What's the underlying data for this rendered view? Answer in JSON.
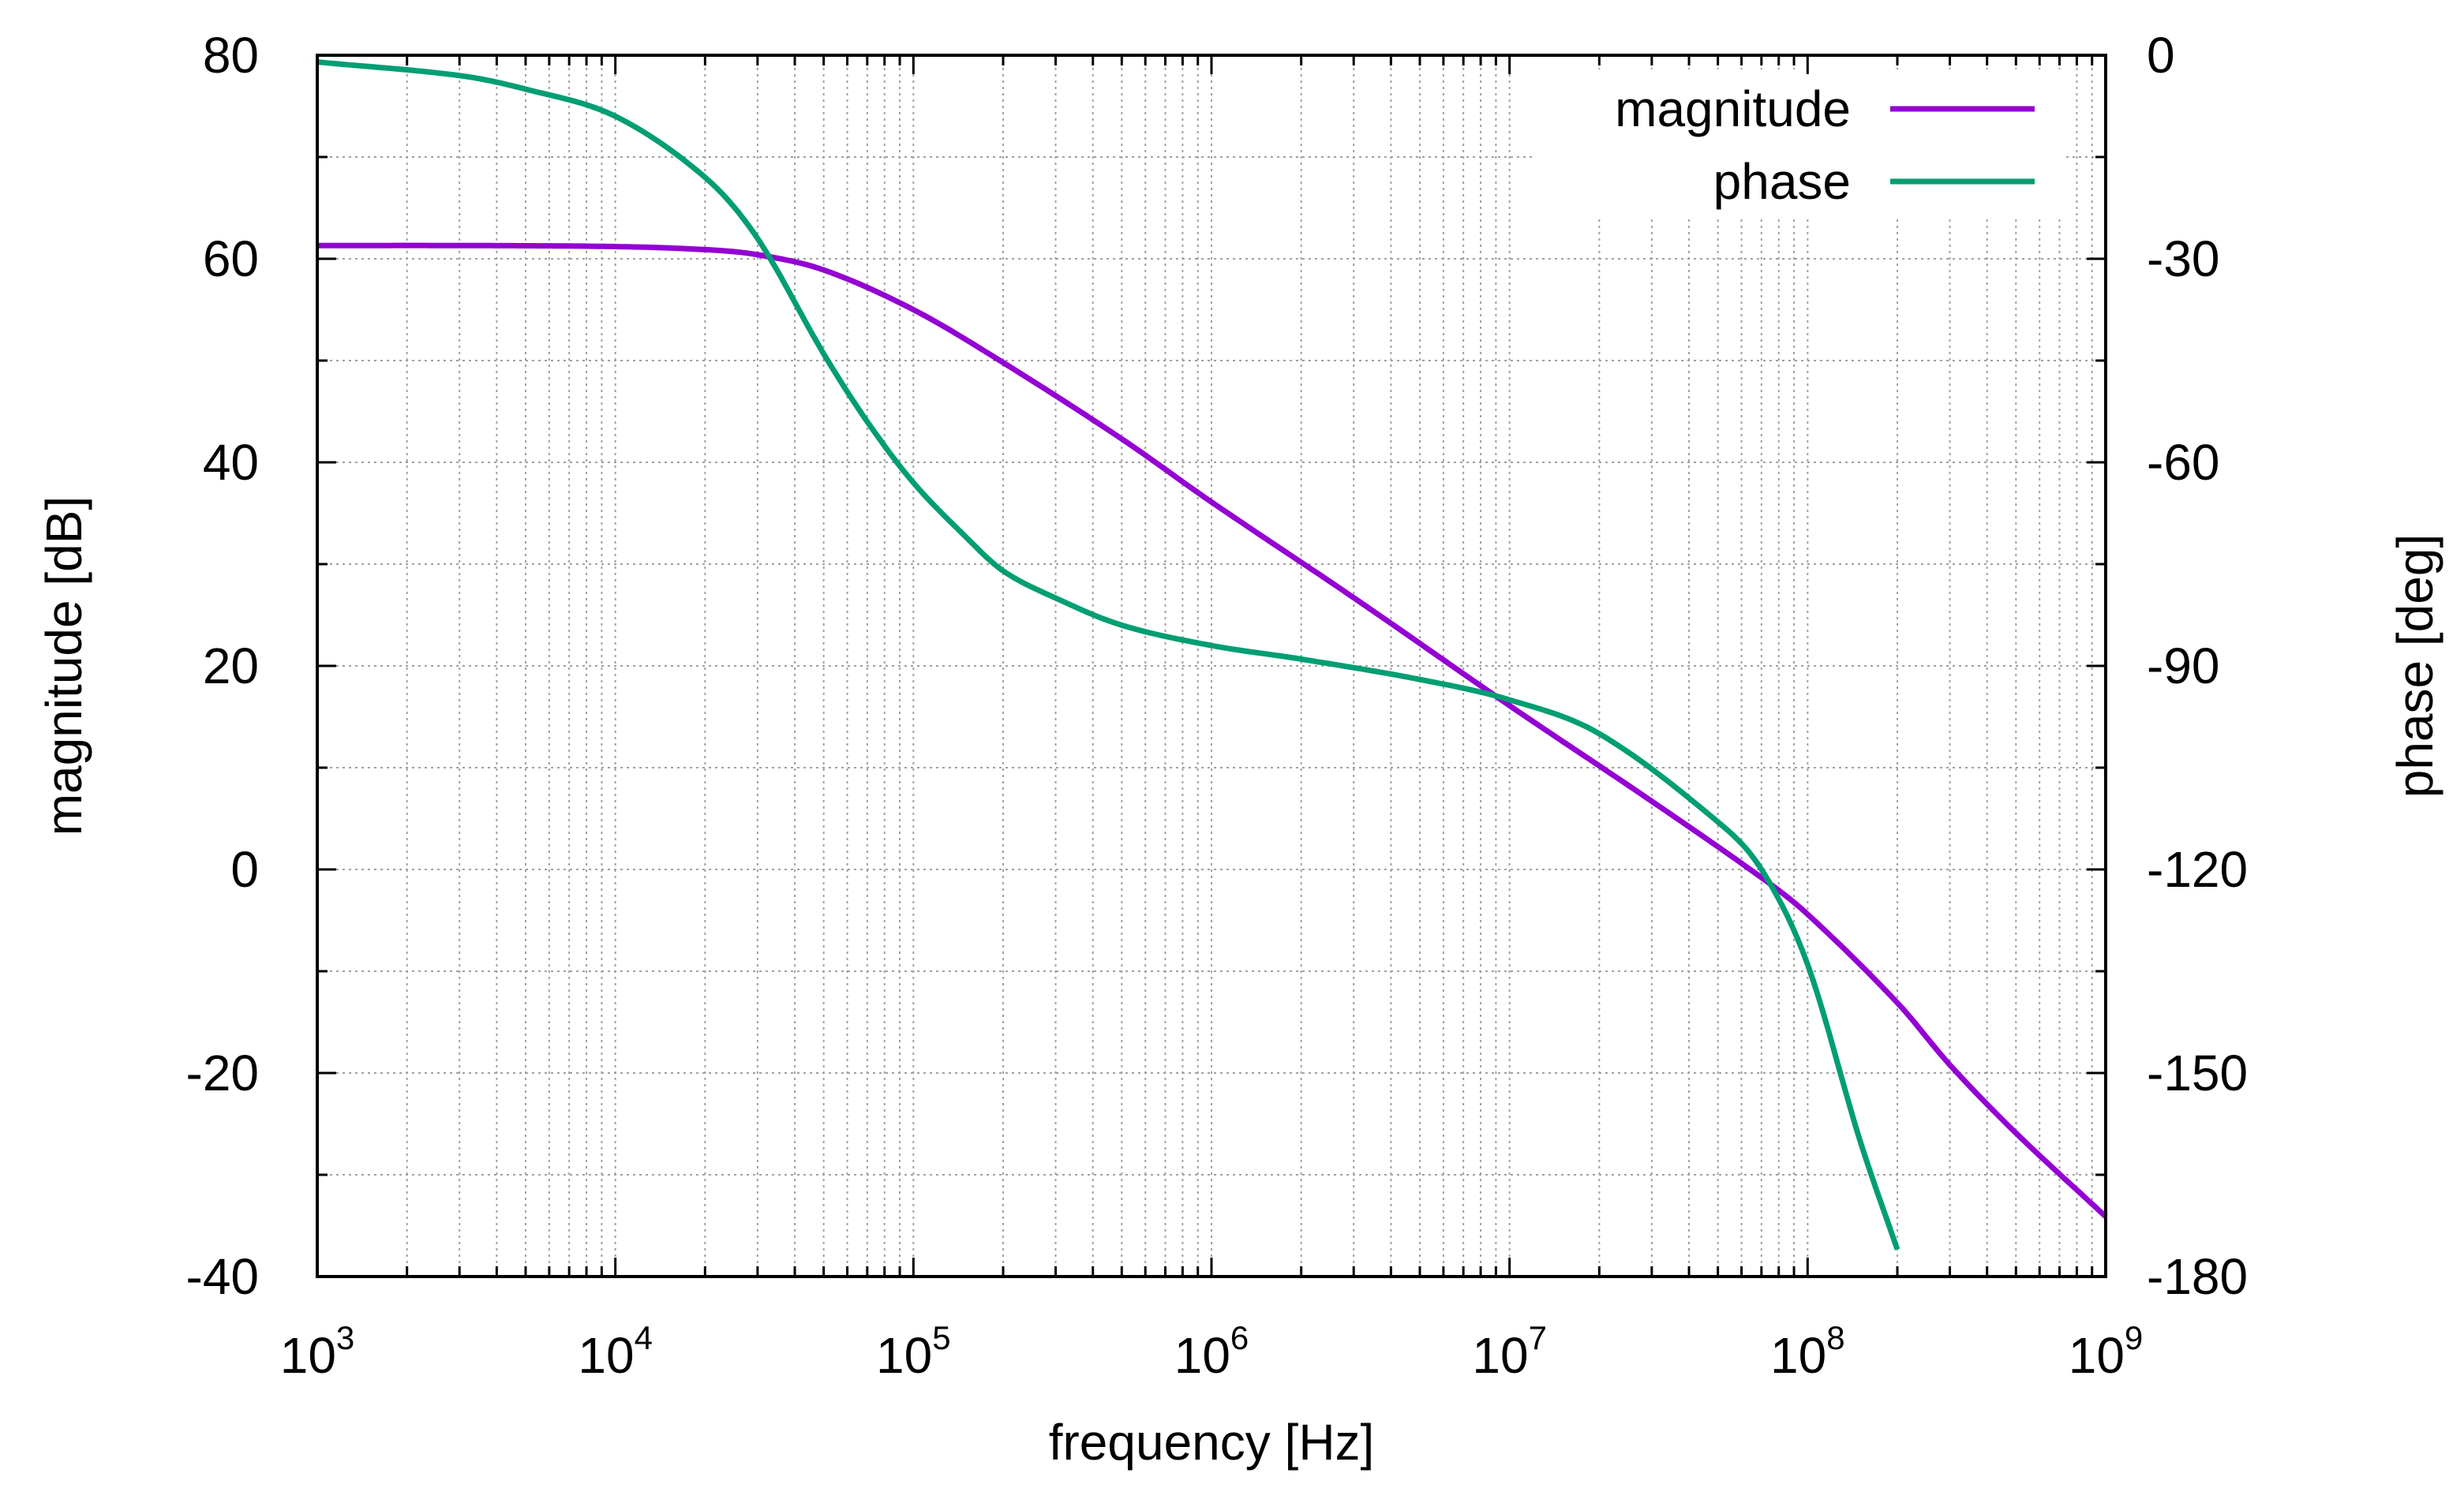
{
  "chart_data": {
    "type": "line",
    "title": "",
    "xlabel": "frequency [Hz]",
    "ylabel": "magnitude [dB]",
    "y2label": "phase [deg]",
    "xscale": "log",
    "xlim": [
      1000,
      1000000000
    ],
    "ylim": [
      -40,
      80
    ],
    "y2lim": [
      -180,
      0
    ],
    "grid": true,
    "legend_position": "top-right",
    "x_ticks": [
      {
        "base": "10",
        "exp": "3",
        "value": 1000
      },
      {
        "base": "10",
        "exp": "4",
        "value": 10000
      },
      {
        "base": "10",
        "exp": "5",
        "value": 100000
      },
      {
        "base": "10",
        "exp": "6",
        "value": 1000000
      },
      {
        "base": "10",
        "exp": "7",
        "value": 10000000
      },
      {
        "base": "10",
        "exp": "8",
        "value": 100000000
      },
      {
        "base": "10",
        "exp": "9",
        "value": 1000000000
      }
    ],
    "y_ticks": [
      {
        "label": "80",
        "value": 80
      },
      {
        "label": "60",
        "value": 60
      },
      {
        "label": "40",
        "value": 40
      },
      {
        "label": "20",
        "value": 20
      },
      {
        "label": "0",
        "value": 0
      },
      {
        "label": "-20",
        "value": -20
      },
      {
        "label": "-40",
        "value": -40
      }
    ],
    "y2_ticks": [
      {
        "label": "0",
        "value": 0
      },
      {
        "label": "-30",
        "value": -30
      },
      {
        "label": "-60",
        "value": -60
      },
      {
        "label": "-90",
        "value": -90
      },
      {
        "label": "-120",
        "value": -120
      },
      {
        "label": "-150",
        "value": -150
      },
      {
        "label": "-180",
        "value": -180
      }
    ],
    "series": [
      {
        "name": "magnitude",
        "axis": "y",
        "color": "#9400d3",
        "x": [
          1000,
          3000,
          10000,
          20000,
          30000,
          50000,
          100000,
          200000,
          500000,
          1000000,
          3000000,
          10000000,
          30000000,
          70000000,
          100000000,
          200000000,
          300000000,
          500000000,
          1000000000
        ],
        "values": [
          61.3,
          61.3,
          61.2,
          60.9,
          60.4,
          58.9,
          55.0,
          49.8,
          42.3,
          36.1,
          26.7,
          16.1,
          6.7,
          -0.8,
          -4.4,
          -13.1,
          -19.2,
          -25.9,
          -34.1
        ]
      },
      {
        "name": "phase",
        "axis": "y2",
        "color": "#009e73",
        "x": [
          1000,
          3000,
          5000,
          10000,
          20000,
          30000,
          50000,
          70000,
          100000,
          150000,
          200000,
          300000,
          500000,
          1000000,
          2000000,
          5000000,
          10000000,
          20000000,
          50000000,
          70000000,
          100000000,
          150000000,
          200000000
        ],
        "values": [
          -1,
          -3,
          -5,
          -9,
          -18,
          -27,
          -44,
          -54,
          -63,
          -71,
          -76,
          -80,
          -84,
          -87,
          -89,
          -92,
          -95,
          -100,
          -113,
          -120,
          -134,
          -160,
          -176
        ]
      }
    ]
  }
}
